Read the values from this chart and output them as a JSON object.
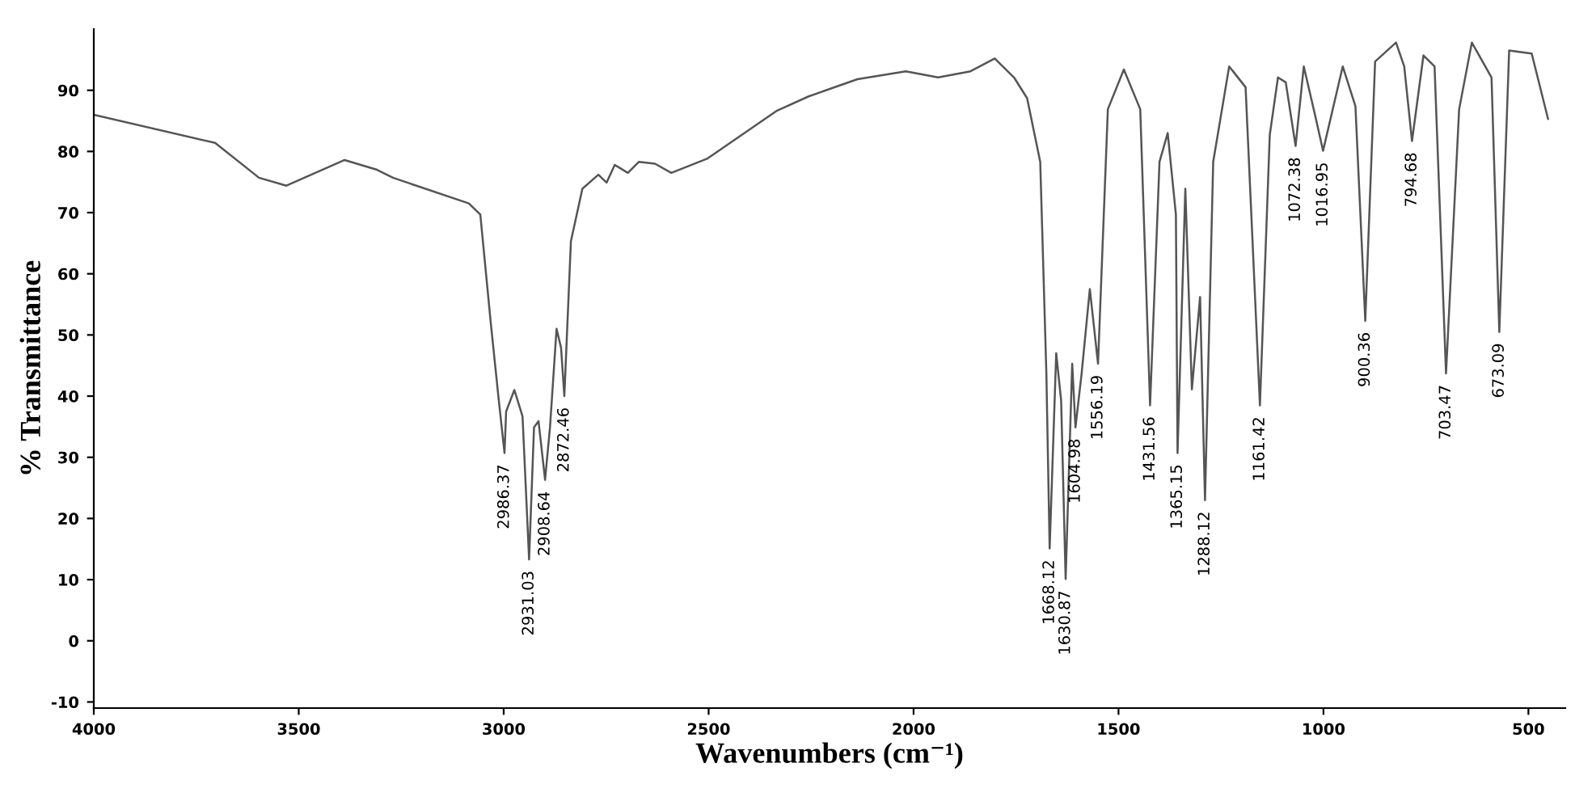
{
  "chart_data": {
    "type": "line",
    "xlabel": "Wavenumbers (cm⁻¹)",
    "ylabel": "% Transmittance",
    "xlim": [
      4000,
      410
    ],
    "ylim": [
      -11,
      100
    ],
    "xticks": [
      4000,
      3500,
      3000,
      2500,
      2000,
      1500,
      1000,
      500
    ],
    "yticks": [
      -10,
      0,
      10,
      20,
      30,
      40,
      50,
      60,
      70,
      80,
      90
    ],
    "grid": false,
    "legend": false,
    "marker": "none",
    "line_style": "solid",
    "series": [
      {
        "color": "#555555",
        "x": [
          4000,
          3704,
          3597,
          3530,
          3388,
          3309,
          3270,
          3085,
          3057,
          3032,
          3013,
          2998,
          2994,
          2974,
          2954,
          2938,
          2926,
          2915,
          2899,
          2887,
          2871,
          2860,
          2852,
          2836,
          2808,
          2769,
          2749,
          2729,
          2697,
          2670,
          2631,
          2591,
          2504,
          2335,
          2256,
          2137,
          2019,
          1940,
          1861,
          1802,
          1755,
          1723,
          1691,
          1676,
          1668,
          1652,
          1640,
          1629,
          1613,
          1605,
          1590,
          1570,
          1550,
          1526,
          1487,
          1447,
          1423,
          1400,
          1380,
          1360,
          1356,
          1337,
          1321,
          1301,
          1289,
          1269,
          1230,
          1190,
          1155,
          1131,
          1111,
          1092,
          1068,
          1048,
          1021,
          1001,
          953,
          922,
          898,
          874,
          823,
          803,
          784,
          756,
          729,
          701,
          669,
          638,
          590,
          571,
          547,
          492,
          452
        ],
        "values": [
          86,
          81.4,
          75.7,
          74.4,
          78.6,
          77,
          75.7,
          71.5,
          69.7,
          52.3,
          40,
          30.7,
          37.5,
          41,
          36.7,
          13.3,
          34.9,
          35.9,
          26.3,
          34.9,
          51,
          47.9,
          40,
          65.3,
          73.9,
          76.2,
          74.9,
          77.8,
          76.5,
          78.3,
          78,
          76.5,
          78.8,
          86.6,
          89,
          91.8,
          93.1,
          92.1,
          93.1,
          95.2,
          92.1,
          88.7,
          78.3,
          43.7,
          15.1,
          47,
          39.3,
          10.1,
          45.3,
          34.9,
          43.7,
          57.5,
          45.3,
          86.9,
          93.4,
          86.9,
          38.5,
          78.3,
          83,
          69.7,
          30.7,
          73.9,
          41.1,
          56.2,
          23,
          78.3,
          93.9,
          90.5,
          38.5,
          82.7,
          92.1,
          91.3,
          80.9,
          93.9,
          86.1,
          80.1,
          93.9,
          87.4,
          52.3,
          94.7,
          97.8,
          93.9,
          81.7,
          95.7,
          93.9,
          43.7,
          86.9,
          97.8,
          92.1,
          50.5,
          96.5,
          96,
          85.3
        ]
      }
    ],
    "annotations": [
      {
        "text": "2986.37",
        "x": 2998,
        "y": 30.7
      },
      {
        "text": "2931.03",
        "x": 2938,
        "y": 13.3
      },
      {
        "text": "2908.64",
        "x": 2899,
        "y": 26.3
      },
      {
        "text": "2872.46",
        "x": 2852,
        "y": 40
      },
      {
        "text": "1668.12",
        "x": 1668,
        "y": 15.1
      },
      {
        "text": "1630.87",
        "x": 1629,
        "y": 10.1
      },
      {
        "text": "1604.98",
        "x": 1605,
        "y": 34.9
      },
      {
        "text": "1556.19",
        "x": 1550,
        "y": 45.3
      },
      {
        "text": "1431.56",
        "x": 1423,
        "y": 38.5
      },
      {
        "text": "1365.15",
        "x": 1356,
        "y": 30.7
      },
      {
        "text": "1288.12",
        "x": 1289,
        "y": 23
      },
      {
        "text": "1161.42",
        "x": 1155,
        "y": 38.5
      },
      {
        "text": "1072.38",
        "x": 1068,
        "y": 80.9
      },
      {
        "text": "1016.95",
        "x": 1001,
        "y": 80.1
      },
      {
        "text": "900.36",
        "x": 898,
        "y": 52.3
      },
      {
        "text": "794.68",
        "x": 784,
        "y": 81.7
      },
      {
        "text": "703.47",
        "x": 701,
        "y": 43.7
      },
      {
        "text": "673.09",
        "x": 571,
        "y": 50.5
      }
    ]
  }
}
